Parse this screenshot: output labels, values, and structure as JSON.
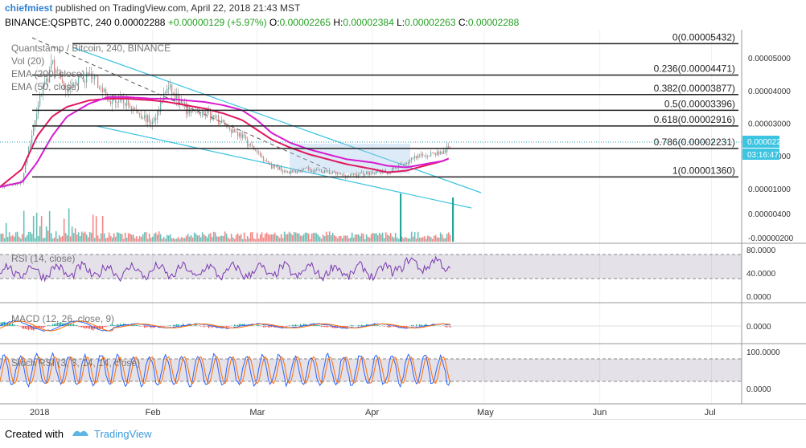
{
  "header": {
    "author": "chiefmiest",
    "published_text": "published on TradingView.com, April 22, 2018 21:43 MST",
    "symbol": "BINANCE:QSPBTC, 240",
    "last": "0.00002288",
    "change": "+0.00000129 (+5.97%)",
    "o_label": "O:",
    "o": "0.00002265",
    "h_label": "H:",
    "h": "0.00002384",
    "l_label": "L:",
    "l": "0.00002263",
    "c_label": "C:",
    "c": "0.00002288"
  },
  "legend": {
    "title": "Quantstamp / Bitcoin, 240, BINANCE",
    "vol": "Vol (20)",
    "ema200": "EMA (200, close)",
    "ema50": "EMA (50, close)"
  },
  "fib_levels": [
    {
      "label": "0(0.00005432)",
      "value": 5.432e-05
    },
    {
      "label": "0.236(0.00004471)",
      "value": 4.471e-05
    },
    {
      "label": "0.382(0.00003877)",
      "value": 3.877e-05
    },
    {
      "label": "0.5(0.00003396)",
      "value": 3.396e-05
    },
    {
      "label": "0.618(0.00002916)",
      "value": 2.916e-05
    },
    {
      "label": "0.786(0.00002231)",
      "value": 2.231e-05
    },
    {
      "label": "1(0.00001360)",
      "value": 1.36e-05
    }
  ],
  "price_axis": [
    "0.00005000",
    "0.00004000",
    "0.00003000",
    "0.00002000",
    "0.00001000",
    "0.00000400",
    "-0.00000200"
  ],
  "price_tag": {
    "value": "0.00002288",
    "countdown": "03:16:47"
  },
  "rsi": {
    "label": "RSI (14, close)",
    "axis": [
      "80.0000",
      "40.0000",
      "0.0000"
    ]
  },
  "macd": {
    "label": "MACD (12, 26, close, 9)",
    "axis": [
      "0.0000"
    ]
  },
  "stoch": {
    "label": "Stoch RSI (3, 3, 14, 14, close)",
    "axis": [
      "100.0000",
      "0.0000"
    ]
  },
  "time_axis": [
    "2018",
    "Feb",
    "Mar",
    "Apr",
    "May",
    "Jun",
    "Jul"
  ],
  "footer": {
    "created_with": "Created with",
    "brand": "TradingView"
  },
  "colors": {
    "up": "#26a69a",
    "down": "#ef5350",
    "ema200": "#e0175f",
    "ema50": "#d81bd0",
    "channel": "#3cc4e0",
    "fib": "#222222",
    "rsi": "#7a3ab0",
    "oscbg": "#2a0a4a"
  },
  "chart_data": {
    "type": "candlestick",
    "symbol": "QSPBTC",
    "ylim": [
      -2e-06,
      5.45e-05
    ],
    "close_series": {
      "x": [
        "2017-12-22",
        "2017-12-28",
        "2018-01-01",
        "2018-01-05",
        "2018-01-09",
        "2018-01-15",
        "2018-01-20",
        "2018-01-25",
        "2018-02-01",
        "2018-02-05",
        "2018-02-10",
        "2018-02-15",
        "2018-02-20",
        "2018-02-25",
        "2018-03-01",
        "2018-03-05",
        "2018-03-10",
        "2018-03-15",
        "2018-03-20",
        "2018-03-25",
        "2018-04-01",
        "2018-04-05",
        "2018-04-10",
        "2018-04-15",
        "2018-04-20",
        "2018-04-22"
      ],
      "values": [
        1.05e-05,
        1.2e-05,
        3.5e-05,
        4.8e-05,
        4e-05,
        4.5e-05,
        3.8e-05,
        3.6e-05,
        3e-05,
        4.1e-05,
        3.4e-05,
        3.3e-05,
        3e-05,
        2.6e-05,
        2.1e-05,
        1.7e-05,
        1.5e-05,
        1.6e-05,
        1.5e-05,
        1.4e-05,
        1.5e-05,
        1.5e-05,
        1.8e-05,
        2.05e-05,
        2.1e-05,
        2.288e-05
      ]
    },
    "ema50_values": [
      1.05e-05,
      1.2e-05,
      1.8e-05,
      2.6e-05,
      3.2e-05,
      3.6e-05,
      3.8e-05,
      3.8e-05,
      3.75e-05,
      3.75e-05,
      3.7e-05,
      3.65e-05,
      3.55e-05,
      3.4e-05,
      3.1e-05,
      2.7e-05,
      2.4e-05,
      2.2e-05,
      2.05e-05,
      1.9e-05,
      1.8e-05,
      1.7e-05,
      1.65e-05,
      1.75e-05,
      1.85e-05,
      1.95e-05
    ],
    "ema200_values": [
      1.05e-05,
      1.6e-05,
      2.6e-05,
      3.2e-05,
      3.5e-05,
      3.7e-05,
      3.75e-05,
      3.75e-05,
      3.7e-05,
      3.65e-05,
      3.55e-05,
      3.45e-05,
      3.3e-05,
      3.1e-05,
      2.8e-05,
      2.5e-05,
      2.25e-05,
      2.05e-05,
      1.9e-05,
      1.75e-05,
      1.6e-05,
      1.5e-05,
      1.55e-05,
      1.7e-05,
      1.85e-05,
      1.95e-05
    ],
    "rsi_range": [
      0,
      100
    ],
    "rsi_bands": [
      70,
      30
    ],
    "stoch_bands": [
      80,
      20
    ]
  }
}
